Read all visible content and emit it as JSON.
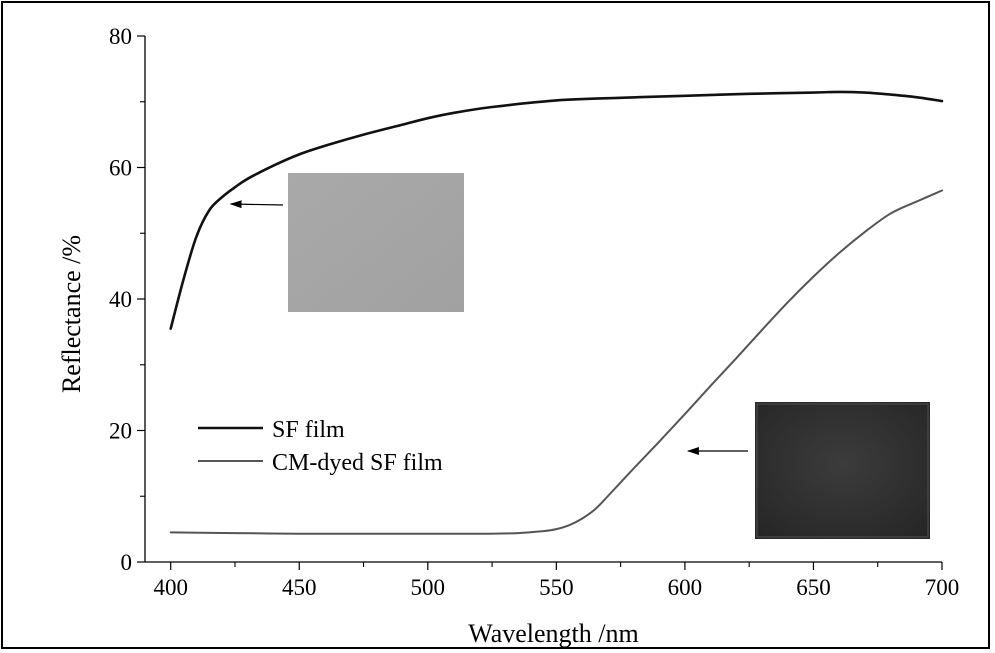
{
  "chart_data": {
    "type": "line",
    "title": "",
    "xlabel": "Wavelength /nm",
    "ylabel": "Reflectance /%",
    "xlim": [
      390,
      700
    ],
    "ylim": [
      0,
      80
    ],
    "x_ticks": [
      400,
      450,
      500,
      550,
      600,
      650,
      700
    ],
    "y_ticks": [
      0,
      20,
      40,
      60,
      80
    ],
    "grid": false,
    "legend_position": "lower-left",
    "series": [
      {
        "name": "SF film",
        "color": "#111111",
        "x": [
          400,
          405,
          410,
          415,
          420,
          425,
          430,
          440,
          450,
          460,
          475,
          490,
          500,
          510,
          525,
          550,
          575,
          600,
          625,
          650,
          660,
          670,
          680,
          690,
          700
        ],
        "y": [
          35.5,
          43.0,
          49.5,
          53.5,
          55.5,
          57.0,
          58.3,
          60.3,
          62.0,
          63.3,
          65.0,
          66.5,
          67.5,
          68.3,
          69.2,
          70.2,
          70.6,
          70.9,
          71.2,
          71.4,
          71.5,
          71.4,
          71.1,
          70.7,
          70.1
        ]
      },
      {
        "name": "CM-dyed SF film",
        "color": "#555555",
        "x": [
          400,
          425,
          450,
          475,
          500,
          520,
          535,
          545,
          550,
          555,
          560,
          565,
          570,
          580,
          590,
          600,
          610,
          620,
          630,
          640,
          650,
          660,
          670,
          680,
          690,
          700
        ],
        "y": [
          4.5,
          4.4,
          4.3,
          4.3,
          4.3,
          4.3,
          4.4,
          4.7,
          5.0,
          5.6,
          6.6,
          8.0,
          10.0,
          14.2,
          18.3,
          22.5,
          26.8,
          31.0,
          35.3,
          39.5,
          43.4,
          47.0,
          50.2,
          53.0,
          54.8,
          56.5
        ]
      }
    ],
    "annotations": [
      {
        "type": "inset-photo",
        "description_key": "light",
        "points_to": {
          "series": "SF film",
          "x": 421,
          "y": 54.8
        },
        "color": "#a6a6a6"
      },
      {
        "type": "inset-photo",
        "description_key": "dark",
        "points_to": {
          "series": "CM-dyed SF film",
          "x": 600,
          "y": 18.5
        },
        "color": "#333333"
      }
    ]
  }
}
